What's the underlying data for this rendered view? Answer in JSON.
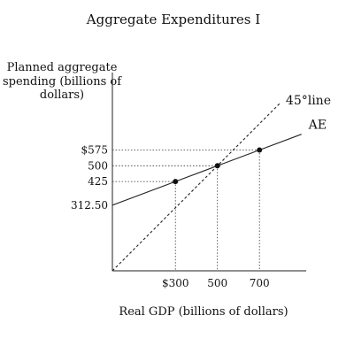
{
  "chart_data": {
    "type": "line",
    "title": "Aggregate Expenditures I",
    "ylabel_lines": [
      "Planned aggregate",
      "spending (billions of",
      "dollars)"
    ],
    "xlabel": "Real GDP (billions of dollars)",
    "xlim": [
      0,
      1130
    ],
    "ylim": [
      0,
      900
    ],
    "x_tick_labels": [
      {
        "value": 300,
        "label": "$300"
      },
      {
        "value": 500,
        "label": "500"
      },
      {
        "value": 700,
        "label": "700"
      }
    ],
    "y_tick_labels": [
      {
        "value": 575,
        "label": "$575"
      },
      {
        "value": 500,
        "label": "500"
      },
      {
        "value": 425,
        "label": "425"
      },
      {
        "value": 312.5,
        "label": "312.50"
      }
    ],
    "series": [
      {
        "name": "AE",
        "x": [
          0,
          300,
          500,
          700,
          900
        ],
        "y": [
          312.5,
          425,
          500,
          575,
          650
        ],
        "style": "solid"
      },
      {
        "name": "45°line",
        "x": [
          0,
          800
        ],
        "y": [
          0,
          800
        ],
        "style": "dashed"
      }
    ],
    "points": [
      {
        "x": 300,
        "y": 425
      },
      {
        "x": 500,
        "y": 500
      },
      {
        "x": 700,
        "y": 575
      }
    ],
    "grid": false
  }
}
